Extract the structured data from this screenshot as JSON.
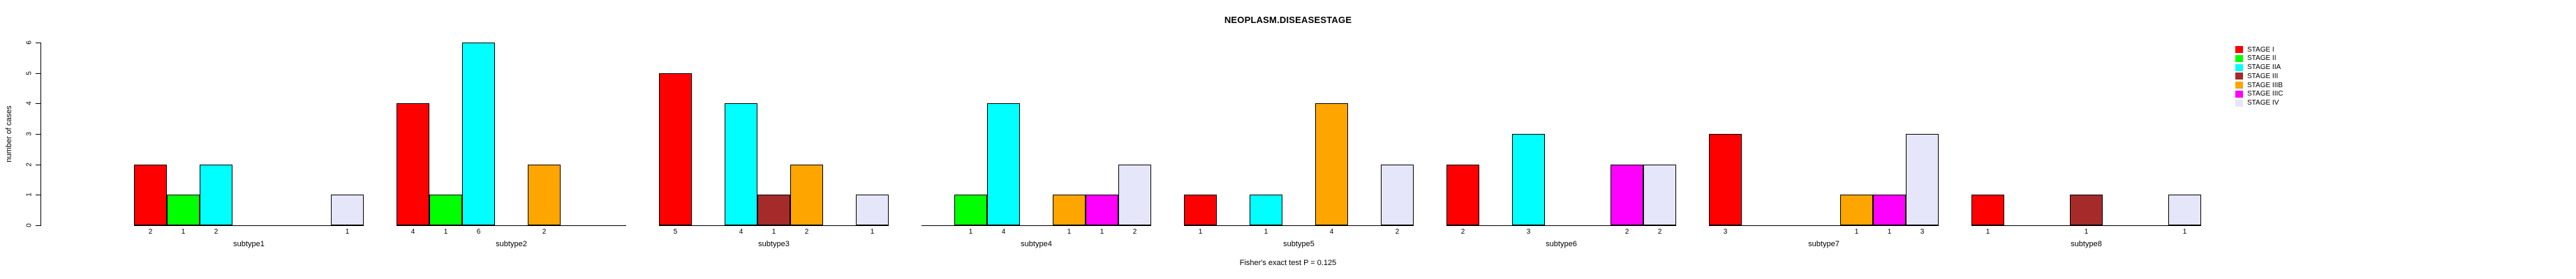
{
  "chart_data": {
    "type": "bar",
    "title": "NEOPLASM.DISEASESTAGE",
    "ylabel": "number of cases",
    "caption": "Fisher's exact test P = 0.125",
    "ylim": [
      0,
      6
    ],
    "yticks": [
      0,
      1,
      2,
      3,
      4,
      5,
      6
    ],
    "grid": false,
    "legend_position": "top-right",
    "bar_label_rule": "count shown under each bar with value > 0",
    "categories": [
      "subtype1",
      "subtype2",
      "subtype3",
      "subtype4",
      "subtype5",
      "subtype6",
      "subtype7",
      "subtype8"
    ],
    "series": [
      {
        "name": "STAGE I",
        "color": "#FF0000",
        "values": [
          2,
          4,
          5,
          0,
          1,
          2,
          3,
          1
        ]
      },
      {
        "name": "STAGE II",
        "color": "#00FF00",
        "values": [
          1,
          1,
          0,
          1,
          0,
          0,
          0,
          0
        ]
      },
      {
        "name": "STAGE IIA",
        "color": "#00FFFF",
        "values": [
          2,
          6,
          4,
          4,
          1,
          3,
          0,
          0
        ]
      },
      {
        "name": "STAGE III",
        "color": "#A52A2A",
        "values": [
          0,
          0,
          1,
          0,
          0,
          0,
          0,
          1
        ]
      },
      {
        "name": "STAGE IIIB",
        "color": "#FFA500",
        "values": [
          0,
          2,
          2,
          1,
          4,
          0,
          1,
          0
        ]
      },
      {
        "name": "STAGE IIIC",
        "color": "#FF00FF",
        "values": [
          0,
          0,
          0,
          1,
          0,
          2,
          1,
          0
        ]
      },
      {
        "name": "STAGE IV",
        "color": "#E6E6FA",
        "values": [
          1,
          0,
          1,
          2,
          2,
          2,
          3,
          1
        ]
      }
    ]
  }
}
